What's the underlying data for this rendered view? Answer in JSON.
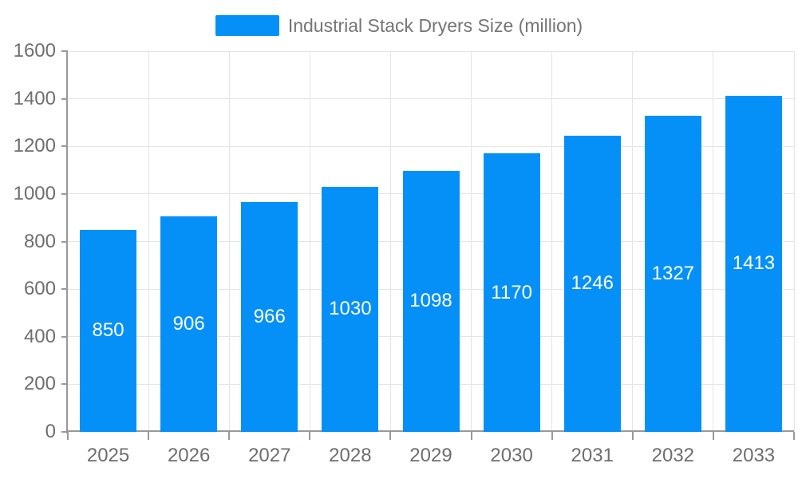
{
  "legend": {
    "label": "Industrial Stack Dryers Size (million)"
  },
  "colors": {
    "bar": "#0590f8",
    "legend_text": "#757575",
    "axis_label": "#6e6e6e",
    "grid_line": "#e5e5e5",
    "axis_line": "#999999",
    "value_label": "#ffffff",
    "background": "#ffffff"
  },
  "chart_data": {
    "type": "bar",
    "title": "Industrial Stack Dryers Size (million)",
    "categories": [
      "2025",
      "2026",
      "2027",
      "2028",
      "2029",
      "2030",
      "2031",
      "2032",
      "2033"
    ],
    "values": [
      850,
      906,
      966,
      1030,
      1098,
      1170,
      1246,
      1327,
      1413
    ],
    "xlabel": "",
    "ylabel": "",
    "ylim": [
      0,
      1600
    ],
    "yticks": [
      0,
      200,
      400,
      600,
      800,
      1000,
      1200,
      1400,
      1600
    ],
    "grid": true,
    "legend_position": "top",
    "value_label_position": "inside-center"
  }
}
